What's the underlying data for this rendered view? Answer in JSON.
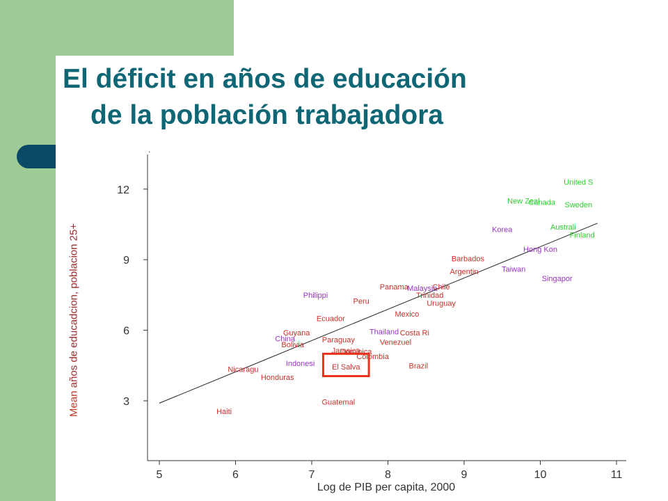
{
  "slide": {
    "title_line1": "El déficit en años de educación",
    "title_line2": "de la población trabajadora",
    "dot_mark": "."
  },
  "colors": {
    "green": "#9dcc96",
    "navy": "#0a4a66",
    "title": "#0f6675"
  },
  "chart_data": {
    "type": "scatter",
    "xlabel": "Log de PIB per capita, 2000",
    "ylabel_prefix": "Mean",
    "ylabel_rest": " años de educadcion, poblacion 25+",
    "xlim": [
      5,
      11
    ],
    "ylim": [
      0.3,
      12.9
    ],
    "xticks": [
      5,
      6,
      7,
      8,
      9,
      10,
      11
    ],
    "yticks": [
      3,
      6,
      9,
      12
    ],
    "trend_line": [
      {
        "x": 5.0,
        "y": 2.9
      },
      {
        "x": 10.75,
        "y": 10.55
      }
    ],
    "highlight_box": {
      "x0": 7.15,
      "x1": 7.75,
      "y0": 4.05,
      "y1": 5.0
    },
    "group_colors": {
      "latam": "#c8312a",
      "asia": "#9a35c4",
      "oecd": "#2fcf30"
    },
    "points": [
      {
        "label": "United S",
        "x": 10.5,
        "y": 12.3,
        "group": "oecd"
      },
      {
        "label": "New Zeal",
        "x": 9.78,
        "y": 11.5,
        "group": "oecd"
      },
      {
        "label": "Canada",
        "x": 10.02,
        "y": 11.45,
        "group": "oecd"
      },
      {
        "label": "Sweden",
        "x": 10.5,
        "y": 11.35,
        "group": "oecd"
      },
      {
        "label": "Australi",
        "x": 10.3,
        "y": 10.4,
        "group": "oecd"
      },
      {
        "label": "Finland",
        "x": 10.55,
        "y": 10.05,
        "group": "oecd"
      },
      {
        "label": "Korea",
        "x": 9.5,
        "y": 10.3,
        "group": "asia"
      },
      {
        "label": "Hong Kon",
        "x": 10.0,
        "y": 9.45,
        "group": "asia"
      },
      {
        "label": "Taiwan",
        "x": 9.65,
        "y": 8.6,
        "group": "asia"
      },
      {
        "label": "Singapor",
        "x": 10.22,
        "y": 8.2,
        "group": "asia"
      },
      {
        "label": "Barbados",
        "x": 9.05,
        "y": 9.05,
        "group": "latam"
      },
      {
        "label": "Argentin",
        "x": 9.0,
        "y": 8.5,
        "group": "latam"
      },
      {
        "label": "Panama",
        "x": 8.08,
        "y": 7.85,
        "group": "latam"
      },
      {
        "label": "Malaysia",
        "x": 8.45,
        "y": 7.8,
        "group": "asia"
      },
      {
        "label": "Chile",
        "x": 8.7,
        "y": 7.85,
        "group": "latam"
      },
      {
        "label": "Trinidad",
        "x": 8.55,
        "y": 7.5,
        "group": "latam"
      },
      {
        "label": "Uruguay",
        "x": 8.7,
        "y": 7.15,
        "group": "latam"
      },
      {
        "label": "Philippi",
        "x": 7.05,
        "y": 7.5,
        "group": "asia"
      },
      {
        "label": "Peru",
        "x": 7.65,
        "y": 7.25,
        "group": "latam"
      },
      {
        "label": "Mexico",
        "x": 8.25,
        "y": 6.7,
        "group": "latam"
      },
      {
        "label": "Ecuador",
        "x": 7.25,
        "y": 6.5,
        "group": "latam"
      },
      {
        "label": "Thailand",
        "x": 7.95,
        "y": 5.95,
        "group": "asia"
      },
      {
        "label": "Costa Ri",
        "x": 8.35,
        "y": 5.9,
        "group": "latam"
      },
      {
        "label": "Guyana",
        "x": 6.8,
        "y": 5.9,
        "group": "latam"
      },
      {
        "label": "China",
        "x": 6.65,
        "y": 5.65,
        "group": "asia"
      },
      {
        "label": "Paraguay",
        "x": 7.35,
        "y": 5.6,
        "group": "latam"
      },
      {
        "label": "Venezuel",
        "x": 8.1,
        "y": 5.5,
        "group": "latam"
      },
      {
        "label": "Bolivia",
        "x": 6.75,
        "y": 5.4,
        "group": "latam"
      },
      {
        "label": "Jamaica",
        "x": 7.45,
        "y": 5.15,
        "group": "latam"
      },
      {
        "label": "Dominica",
        "x": 7.58,
        "y": 5.1,
        "group": "latam"
      },
      {
        "label": "Colombia",
        "x": 7.8,
        "y": 4.9,
        "group": "latam"
      },
      {
        "label": "Indonesi",
        "x": 6.85,
        "y": 4.6,
        "group": "asia"
      },
      {
        "label": "El Salva",
        "x": 7.45,
        "y": 4.45,
        "group": "latam"
      },
      {
        "label": "Brazil",
        "x": 8.4,
        "y": 4.5,
        "group": "latam"
      },
      {
        "label": "Nicaragu",
        "x": 6.1,
        "y": 4.35,
        "group": "latam"
      },
      {
        "label": "Honduras",
        "x": 6.55,
        "y": 4.0,
        "group": "latam"
      },
      {
        "label": "Guatemal",
        "x": 7.35,
        "y": 2.95,
        "group": "latam"
      },
      {
        "label": "Haiti",
        "x": 5.85,
        "y": 2.55,
        "group": "latam"
      }
    ]
  }
}
